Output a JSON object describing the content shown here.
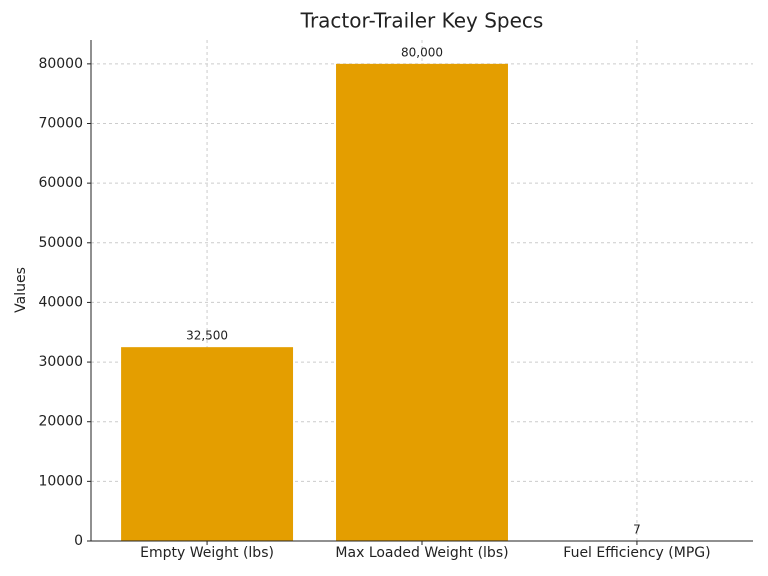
{
  "chart_data": {
    "type": "bar",
    "title": "Tractor-Trailer Key Specs",
    "y_label": "Values",
    "categories": [
      "Empty Weight (lbs)",
      "Max Loaded Weight (lbs)",
      "Fuel Efficiency (MPG)"
    ],
    "values": [
      32500,
      80000,
      7
    ],
    "value_labels": [
      "32,500",
      "80,000",
      "7"
    ],
    "color": "#e49e00",
    "ylim": [
      0,
      84000
    ],
    "yticks": [
      0,
      10000,
      20000,
      30000,
      40000,
      50000,
      60000,
      70000,
      80000
    ],
    "grid": true
  }
}
